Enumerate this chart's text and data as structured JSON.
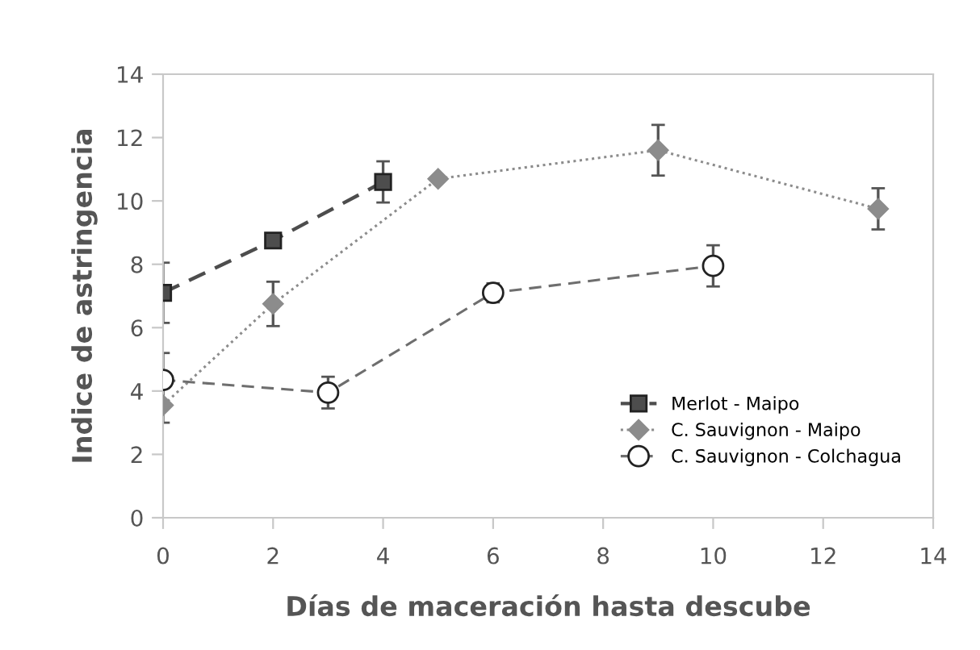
{
  "chart_data": {
    "type": "line",
    "xlabel": "Días de maceración hasta descube",
    "ylabel": "Indice de astringencia",
    "xlim": [
      0,
      14
    ],
    "xticks": [
      0,
      2,
      4,
      6,
      8,
      10,
      12,
      14
    ],
    "ylim": [
      0,
      14
    ],
    "yticks": [
      0,
      2,
      4,
      6,
      8,
      10,
      12,
      14
    ],
    "grid": false,
    "legend": "bottom right",
    "series": [
      {
        "name": "Merlot - Maipo",
        "color": "#4d4d4d",
        "marker": "square",
        "line_style": "dashed",
        "x": [
          0,
          2,
          4
        ],
        "values": [
          7.1,
          8.75,
          10.6
        ],
        "errors": [
          0.95,
          null,
          0.65
        ]
      },
      {
        "name": "C. Sauvignon - Maipo",
        "color": "#8c8c8c",
        "marker": "diamond",
        "line_style": "dotted",
        "x": [
          0,
          2,
          5,
          9,
          13
        ],
        "values": [
          3.55,
          6.75,
          10.7,
          11.6,
          9.75
        ],
        "errors": [
          0.55,
          0.7,
          null,
          0.8,
          0.65
        ]
      },
      {
        "name": "C. Sauvignon - Colchagua",
        "color": "#6e6e6e",
        "marker": "circle",
        "line_style": "dashed",
        "x": [
          0,
          3,
          6,
          10
        ],
        "values": [
          4.35,
          3.95,
          7.1,
          7.95
        ],
        "errors": [
          0.85,
          0.5,
          0.3,
          0.65
        ]
      }
    ]
  }
}
